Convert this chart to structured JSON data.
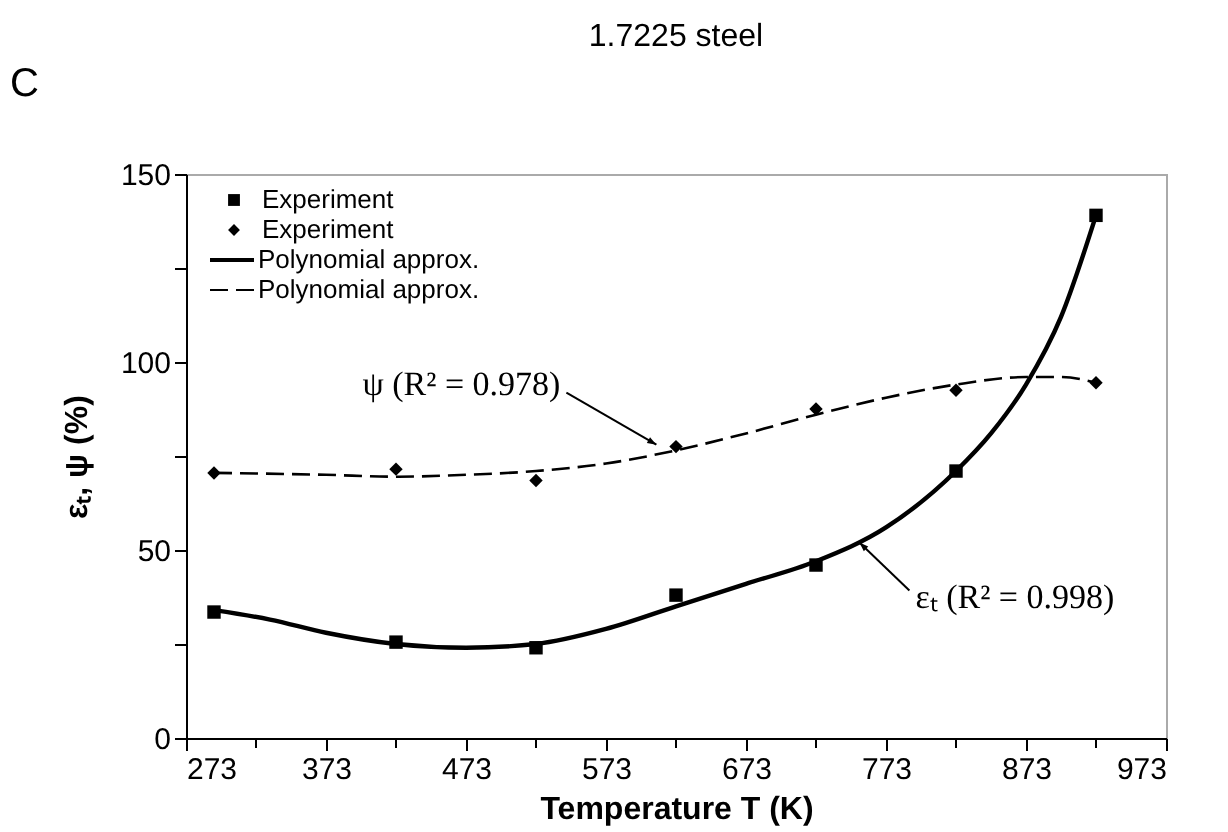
{
  "chart_data": {
    "type": "scatter",
    "title": "1.7225 steel",
    "xlabel": "Temperature T (K)",
    "ylabel": "εₜ, ψ (%)",
    "xlim": [
      273,
      973
    ],
    "xticks": [
      273,
      {
        "value": 323,
        "label": null
      },
      373,
      {
        "value": 423,
        "label": null
      },
      473,
      {
        "value": 523,
        "label": null
      },
      573,
      {
        "value": 623,
        "label": null
      },
      673,
      {
        "value": 723,
        "label": null
      },
      773,
      {
        "value": 823,
        "label": null
      },
      873,
      {
        "value": 923,
        "label": null
      },
      973
    ],
    "ylim": [
      0,
      150
    ],
    "yticks": [
      0,
      {
        "value": 25,
        "label": null
      },
      50,
      {
        "value": 75,
        "label": null
      },
      100,
      {
        "value": 125,
        "label": null
      },
      150
    ],
    "grid": false,
    "legend": "top left",
    "series": [
      {
        "name": "Experiment",
        "type": "scatter",
        "marker": "square",
        "color": "#000000",
        "x": [
          293,
          423,
          523,
          623,
          723,
          823,
          923
        ],
        "values": [
          33.5,
          25.5,
          24,
          38,
          46,
          71,
          139
        ]
      },
      {
        "name": "Experiment",
        "type": "scatter",
        "marker": "diamond",
        "color": "#000000",
        "x": [
          293,
          423,
          523,
          623,
          723,
          823,
          923
        ],
        "values": [
          70.5,
          71.5,
          68.5,
          77.5,
          87.5,
          92.5,
          94.5
        ]
      },
      {
        "name": "Polynomial approx.",
        "type": "line",
        "line_style": "solid",
        "color": "#000000",
        "x": [
          293,
          333,
          373,
          423,
          473,
          523,
          573,
          623,
          673,
          723,
          773,
          823,
          848,
          873,
          898,
          923
        ],
        "values": [
          34,
          31.5,
          28,
          25,
          24,
          25,
          29,
          35,
          41,
          47,
          56,
          71,
          81,
          94,
          112,
          139
        ]
      },
      {
        "name": "Polynomial approx.",
        "type": "line",
        "line_style": "dashed",
        "color": "#000000",
        "x": [
          293,
          373,
          423,
          473,
          523,
          573,
          623,
          673,
          723,
          773,
          823,
          873,
          898,
          923
        ],
        "values": [
          70.5,
          70,
          69.5,
          70,
          71,
          73,
          76.5,
          81,
          86,
          90.5,
          94,
          96,
          96,
          94.5
        ]
      }
    ],
    "annotations": [
      "C",
      {
        "text": "ψ (R² = 0.978)",
        "x": 609,
        "y": 78
      },
      {
        "text": "εₜ (R² = 0.998)",
        "x": 754,
        "y": 52
      }
    ]
  }
}
